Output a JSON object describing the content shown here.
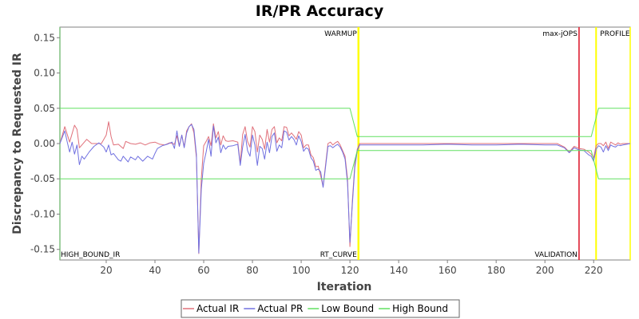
{
  "chart_data": {
    "type": "line",
    "title": "IR/PR Accuracy",
    "xlabel": "Iteration",
    "ylabel": "Discrepancy to Requested IR",
    "xlim": [
      1,
      235
    ],
    "ylim": [
      -0.165,
      0.165
    ],
    "xticks": [
      20,
      40,
      60,
      80,
      100,
      120,
      140,
      160,
      180,
      200,
      220
    ],
    "yticks": [
      -0.15,
      -0.1,
      -0.05,
      0.0,
      0.05,
      0.1,
      0.15
    ],
    "ytick_labels": [
      "-0.15",
      "-0.10",
      "-0.05",
      "0.00",
      "0.05",
      "0.10",
      "0.15"
    ],
    "grid": false,
    "legend_position": "bottom",
    "markers": [
      {
        "x": 1,
        "label": "HIGH_BOUND_IR",
        "color": "#80c080",
        "label_pos": "bottom"
      },
      {
        "x": 123.5,
        "label": "WARMUP",
        "color": "#ffff00",
        "label_pos": "top",
        "width": 2.5
      },
      {
        "x": 123.5,
        "label": "RT_CURVE",
        "color": "#ffff00",
        "label_pos": "bottom"
      },
      {
        "x": 214,
        "label": "max-jOPS",
        "color": "#e03040",
        "label_pos": "top"
      },
      {
        "x": 214,
        "label": "VALIDATION",
        "color": "#e03040",
        "label_pos": "bottom"
      },
      {
        "x": 221,
        "label": "PROFILE",
        "color": "#ffff00",
        "label_pos": "top",
        "width": 2
      },
      {
        "x": 235,
        "label": "",
        "color": "#ffff00",
        "label_pos": "none"
      }
    ],
    "series": [
      {
        "name": "Actual IR",
        "color": "#e0707a",
        "points": [
          [
            1,
            0
          ],
          [
            3,
            0.024
          ],
          [
            5,
            0.002
          ],
          [
            7,
            0.026
          ],
          [
            8,
            0.02
          ],
          [
            9,
            -0.006
          ],
          [
            10,
            -0.002
          ],
          [
            12,
            0.006
          ],
          [
            14,
            0
          ],
          [
            16,
            0
          ],
          [
            18,
            0
          ],
          [
            20,
            0.012
          ],
          [
            21,
            0.031
          ],
          [
            22,
            0.01
          ],
          [
            23,
            -0.002
          ],
          [
            25,
            -0.001
          ],
          [
            27,
            -0.007
          ],
          [
            28,
            0.003
          ],
          [
            30,
            0
          ],
          [
            32,
            -0.001
          ],
          [
            34,
            0.001
          ],
          [
            36,
            -0.002
          ],
          [
            38,
            0.001
          ],
          [
            40,
            0.002
          ],
          [
            42,
            -0.001
          ],
          [
            44,
            -0.002
          ],
          [
            46,
            0.001
          ],
          [
            48,
            -0.001
          ],
          [
            49,
            0.011
          ],
          [
            50,
            -0.004
          ],
          [
            51,
            0.012
          ],
          [
            52,
            -0.005
          ],
          [
            53,
            0.018
          ],
          [
            54,
            0.024
          ],
          [
            55,
            0.028
          ],
          [
            56,
            0.015
          ],
          [
            57,
            -0.02
          ],
          [
            58,
            -0.156
          ],
          [
            59,
            -0.05
          ],
          [
            60,
            -0.003
          ],
          [
            61,
            0.003
          ],
          [
            62,
            0.01
          ],
          [
            63,
            -0.003
          ],
          [
            64,
            0.028
          ],
          [
            65,
            0.008
          ],
          [
            66,
            0.017
          ],
          [
            67,
            -0.002
          ],
          [
            68,
            0.011
          ],
          [
            69,
            0.004
          ],
          [
            70,
            0.003
          ],
          [
            72,
            0.004
          ],
          [
            74,
            0.002
          ],
          [
            75,
            -0.028
          ],
          [
            76,
            0.013
          ],
          [
            77,
            0.024
          ],
          [
            78,
            0.003
          ],
          [
            79,
            -0.005
          ],
          [
            80,
            0.024
          ],
          [
            81,
            0.017
          ],
          [
            82,
            -0.012
          ],
          [
            83,
            0.012
          ],
          [
            84,
            0.006
          ],
          [
            85,
            -0.008
          ],
          [
            86,
            0.02
          ],
          [
            87,
            0.002
          ],
          [
            88,
            0.02
          ],
          [
            89,
            0.024
          ],
          [
            90,
            0.001
          ],
          [
            91,
            0.008
          ],
          [
            92,
            0.004
          ],
          [
            93,
            0.024
          ],
          [
            94,
            0.023
          ],
          [
            95,
            0.011
          ],
          [
            96,
            0.015
          ],
          [
            97,
            0.011
          ],
          [
            98,
            0.006
          ],
          [
            99,
            0.017
          ],
          [
            100,
            0.012
          ],
          [
            101,
            -0.006
          ],
          [
            102,
            -0.002
          ],
          [
            103,
            -0.002
          ],
          [
            104,
            -0.016
          ],
          [
            105,
            -0.02
          ],
          [
            106,
            -0.033
          ],
          [
            107,
            -0.032
          ],
          [
            108,
            -0.046
          ],
          [
            109,
            -0.061
          ],
          [
            110,
            -0.03
          ],
          [
            111,
            0
          ],
          [
            112,
            0.002
          ],
          [
            113,
            -0.002
          ],
          [
            114,
            0.001
          ],
          [
            115,
            0.003
          ],
          [
            116,
            -0.002
          ],
          [
            117,
            -0.01
          ],
          [
            118,
            -0.018
          ],
          [
            119,
            -0.05
          ],
          [
            120,
            -0.146
          ],
          [
            121,
            -0.08
          ],
          [
            122,
            -0.03
          ],
          [
            123,
            -0.008
          ],
          [
            124,
            0
          ],
          [
            130,
            0
          ],
          [
            140,
            0
          ],
          [
            150,
            0
          ],
          [
            160,
            0
          ],
          [
            170,
            0
          ],
          [
            180,
            0
          ],
          [
            190,
            0
          ],
          [
            200,
            0
          ],
          [
            205,
            0
          ],
          [
            208,
            -0.005
          ],
          [
            210,
            -0.012
          ],
          [
            212,
            -0.004
          ],
          [
            214,
            -0.007
          ],
          [
            216,
            -0.008
          ],
          [
            218,
            -0.012
          ],
          [
            219,
            -0.015
          ],
          [
            220,
            -0.02
          ],
          [
            221,
            -0.003
          ],
          [
            222,
            0
          ],
          [
            223,
            0
          ],
          [
            224,
            -0.003
          ],
          [
            225,
            0.002
          ],
          [
            226,
            -0.007
          ],
          [
            227,
            0.002
          ],
          [
            228,
            0
          ],
          [
            229,
            -0.002
          ],
          [
            230,
            0.001
          ],
          [
            231,
            -0.001
          ],
          [
            232,
            0
          ],
          [
            235,
            0
          ]
        ]
      },
      {
        "name": "Actual PR",
        "color": "#7070e0",
        "points": [
          [
            1,
            0
          ],
          [
            3,
            0.018
          ],
          [
            4,
            0.002
          ],
          [
            5,
            -0.012
          ],
          [
            6,
            0.002
          ],
          [
            7,
            -0.015
          ],
          [
            8,
            -0.002
          ],
          [
            9,
            -0.03
          ],
          [
            10,
            -0.018
          ],
          [
            11,
            -0.022
          ],
          [
            13,
            -0.012
          ],
          [
            15,
            -0.004
          ],
          [
            17,
            0.001
          ],
          [
            19,
            -0.005
          ],
          [
            20,
            -0.012
          ],
          [
            21,
            -0.002
          ],
          [
            22,
            -0.016
          ],
          [
            23,
            -0.014
          ],
          [
            25,
            -0.023
          ],
          [
            26,
            -0.025
          ],
          [
            27,
            -0.018
          ],
          [
            29,
            -0.026
          ],
          [
            30,
            -0.019
          ],
          [
            32,
            -0.023
          ],
          [
            33,
            -0.018
          ],
          [
            35,
            -0.025
          ],
          [
            37,
            -0.018
          ],
          [
            39,
            -0.022
          ],
          [
            40,
            -0.014
          ],
          [
            41,
            -0.007
          ],
          [
            43,
            -0.003
          ],
          [
            45,
            -0.001
          ],
          [
            47,
            0.002
          ],
          [
            48,
            -0.007
          ],
          [
            49,
            0.018
          ],
          [
            50,
            -0.004
          ],
          [
            51,
            0.012
          ],
          [
            52,
            -0.006
          ],
          [
            53,
            0.015
          ],
          [
            54,
            0.024
          ],
          [
            55,
            0.027
          ],
          [
            56,
            0.02
          ],
          [
            57,
            -0.015
          ],
          [
            58,
            -0.155
          ],
          [
            59,
            -0.065
          ],
          [
            60,
            -0.028
          ],
          [
            61,
            -0.012
          ],
          [
            62,
            0.006
          ],
          [
            63,
            -0.018
          ],
          [
            64,
            0.025
          ],
          [
            65,
            0.001
          ],
          [
            66,
            0.009
          ],
          [
            67,
            -0.013
          ],
          [
            68,
            -0.002
          ],
          [
            69,
            -0.008
          ],
          [
            70,
            -0.004
          ],
          [
            72,
            -0.003
          ],
          [
            74,
            -0.001
          ],
          [
            75,
            -0.031
          ],
          [
            76,
            -0.005
          ],
          [
            77,
            0.013
          ],
          [
            78,
            -0.01
          ],
          [
            79,
            -0.018
          ],
          [
            80,
            0.012
          ],
          [
            81,
            -0.002
          ],
          [
            82,
            -0.031
          ],
          [
            83,
            -0.004
          ],
          [
            84,
            -0.007
          ],
          [
            85,
            -0.022
          ],
          [
            86,
            0.002
          ],
          [
            87,
            -0.013
          ],
          [
            88,
            0.01
          ],
          [
            89,
            0.015
          ],
          [
            90,
            -0.011
          ],
          [
            91,
            -0.002
          ],
          [
            92,
            -0.006
          ],
          [
            93,
            0.018
          ],
          [
            94,
            0.016
          ],
          [
            95,
            0.005
          ],
          [
            96,
            0.01
          ],
          [
            97,
            0.006
          ],
          [
            98,
            -0.002
          ],
          [
            99,
            0.011
          ],
          [
            100,
            0.003
          ],
          [
            101,
            -0.011
          ],
          [
            102,
            -0.006
          ],
          [
            103,
            -0.008
          ],
          [
            104,
            -0.02
          ],
          [
            105,
            -0.025
          ],
          [
            106,
            -0.038
          ],
          [
            107,
            -0.036
          ],
          [
            108,
            -0.04
          ],
          [
            109,
            -0.062
          ],
          [
            110,
            -0.033
          ],
          [
            111,
            -0.004
          ],
          [
            112,
            -0.003
          ],
          [
            113,
            -0.006
          ],
          [
            114,
            -0.003
          ],
          [
            115,
            -0.001
          ],
          [
            116,
            -0.005
          ],
          [
            117,
            -0.012
          ],
          [
            118,
            -0.022
          ],
          [
            119,
            -0.056
          ],
          [
            120,
            -0.14
          ],
          [
            121,
            -0.085
          ],
          [
            122,
            -0.034
          ],
          [
            123,
            -0.01
          ],
          [
            124,
            -0.002
          ],
          [
            130,
            -0.002
          ],
          [
            140,
            -0.002
          ],
          [
            150,
            -0.002
          ],
          [
            160,
            -0.001
          ],
          [
            170,
            -0.002
          ],
          [
            180,
            -0.002
          ],
          [
            190,
            -0.001
          ],
          [
            200,
            -0.002
          ],
          [
            205,
            -0.002
          ],
          [
            208,
            -0.006
          ],
          [
            210,
            -0.013
          ],
          [
            212,
            -0.006
          ],
          [
            214,
            -0.009
          ],
          [
            216,
            -0.01
          ],
          [
            218,
            -0.016
          ],
          [
            219,
            -0.018
          ],
          [
            220,
            -0.025
          ],
          [
            221,
            -0.008
          ],
          [
            222,
            -0.003
          ],
          [
            223,
            -0.005
          ],
          [
            224,
            -0.012
          ],
          [
            225,
            -0.003
          ],
          [
            226,
            -0.01
          ],
          [
            227,
            -0.002
          ],
          [
            228,
            -0.004
          ],
          [
            229,
            -0.005
          ],
          [
            230,
            -0.002
          ],
          [
            231,
            -0.003
          ],
          [
            232,
            -0.002
          ],
          [
            235,
            0
          ]
        ]
      },
      {
        "name": "Low Bound",
        "color": "#60e060",
        "points": [
          [
            1,
            -0.05
          ],
          [
            120,
            -0.05
          ],
          [
            123,
            -0.01
          ],
          [
            219,
            -0.01
          ],
          [
            222,
            -0.05
          ],
          [
            235,
            -0.05
          ]
        ]
      },
      {
        "name": "High Bound",
        "color": "#60e060",
        "points": [
          [
            1,
            0.05
          ],
          [
            120,
            0.05
          ],
          [
            123,
            0.01
          ],
          [
            219,
            0.01
          ],
          [
            222,
            0.05
          ],
          [
            235,
            0.05
          ]
        ]
      }
    ]
  }
}
